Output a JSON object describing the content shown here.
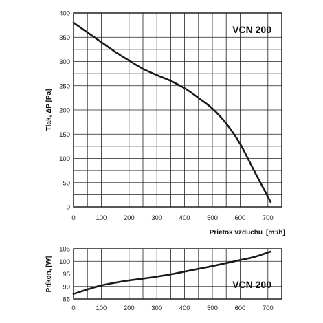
{
  "chart_data": [
    {
      "type": "line",
      "title": "VCN 200",
      "xlabel": "Prietok vzduchu",
      "xunit": "[m³/h]",
      "ylabel": "Tlak, ΔP [Pa]",
      "xlim": [
        0,
        750
      ],
      "ylim": [
        0,
        400
      ],
      "x_ticks": [
        0,
        100,
        200,
        300,
        400,
        500,
        600,
        700
      ],
      "y_ticks": [
        0,
        50,
        100,
        150,
        200,
        250,
        300,
        350,
        400
      ],
      "grid": true,
      "x": [
        0,
        50,
        100,
        150,
        200,
        250,
        300,
        350,
        400,
        450,
        500,
        550,
        600,
        650,
        710
      ],
      "y": [
        380,
        360,
        340,
        320,
        302,
        285,
        272,
        260,
        245,
        225,
        203,
        172,
        130,
        75,
        10
      ]
    },
    {
      "type": "line",
      "title": "VCN 200",
      "xlabel": "",
      "ylabel": "Príkon, [W]",
      "xlim": [
        0,
        750
      ],
      "ylim": [
        85,
        105
      ],
      "x_ticks": [
        0,
        100,
        200,
        300,
        400,
        500,
        600,
        700
      ],
      "y_ticks": [
        85,
        90,
        95,
        100,
        105
      ],
      "grid": true,
      "x": [
        0,
        50,
        100,
        150,
        200,
        250,
        300,
        350,
        400,
        450,
        500,
        550,
        600,
        650,
        710
      ],
      "y": [
        87,
        88.8,
        90.4,
        91.5,
        92.4,
        93.1,
        93.9,
        94.8,
        95.9,
        97.0,
        98.1,
        99.3,
        100.5,
        101.7,
        103.9
      ]
    }
  ]
}
